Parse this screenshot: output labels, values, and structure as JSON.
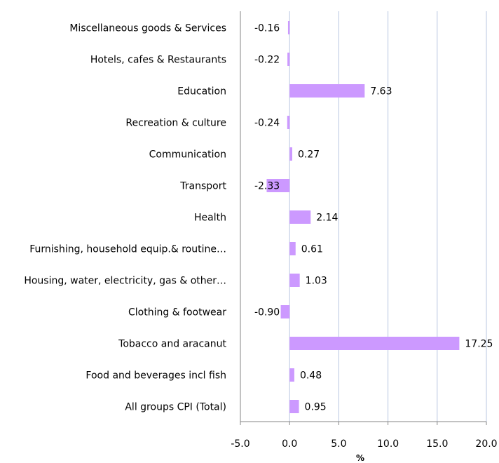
{
  "chart_data": {
    "type": "bar",
    "orientation": "horizontal",
    "categories": [
      "Miscellaneous goods & Services",
      "Hotels, cafes & Restaurants",
      "Education",
      "Recreation & culture",
      "Communication",
      "Transport",
      "Health",
      "Furnishing, household equip.& routine…",
      "Housing, water, electricity, gas & other…",
      "Clothing & footwear",
      "Tobacco and aracanut",
      "Food and beverages incl fish",
      "All groups CPI (Total)"
    ],
    "values": [
      -0.16,
      -0.22,
      7.63,
      -0.24,
      0.27,
      -2.33,
      2.14,
      0.61,
      1.03,
      -0.9,
      17.25,
      0.48,
      0.95
    ],
    "data_labels": [
      "-0.16",
      "-0.22",
      "7.63",
      "-0.24",
      "0.27",
      "-2.33",
      "2.14",
      "0.61",
      "1.03",
      "-0.90",
      "17.25",
      "0.48",
      "0.95"
    ],
    "xlabel": "%",
    "ylabel": "",
    "title": "",
    "xlim": [
      -5.0,
      20.0
    ],
    "xticks": [
      -5.0,
      0.0,
      5.0,
      10.0,
      15.0,
      20.0
    ],
    "xtick_labels": [
      "-5.0",
      "0.0",
      "5.0",
      "10.0",
      "15.0",
      "20.0"
    ],
    "grid": "vertical",
    "legend": "none",
    "colors": {
      "bar": "#cc99ff",
      "grid": "#b8c7e0",
      "axis": "#868686"
    }
  }
}
